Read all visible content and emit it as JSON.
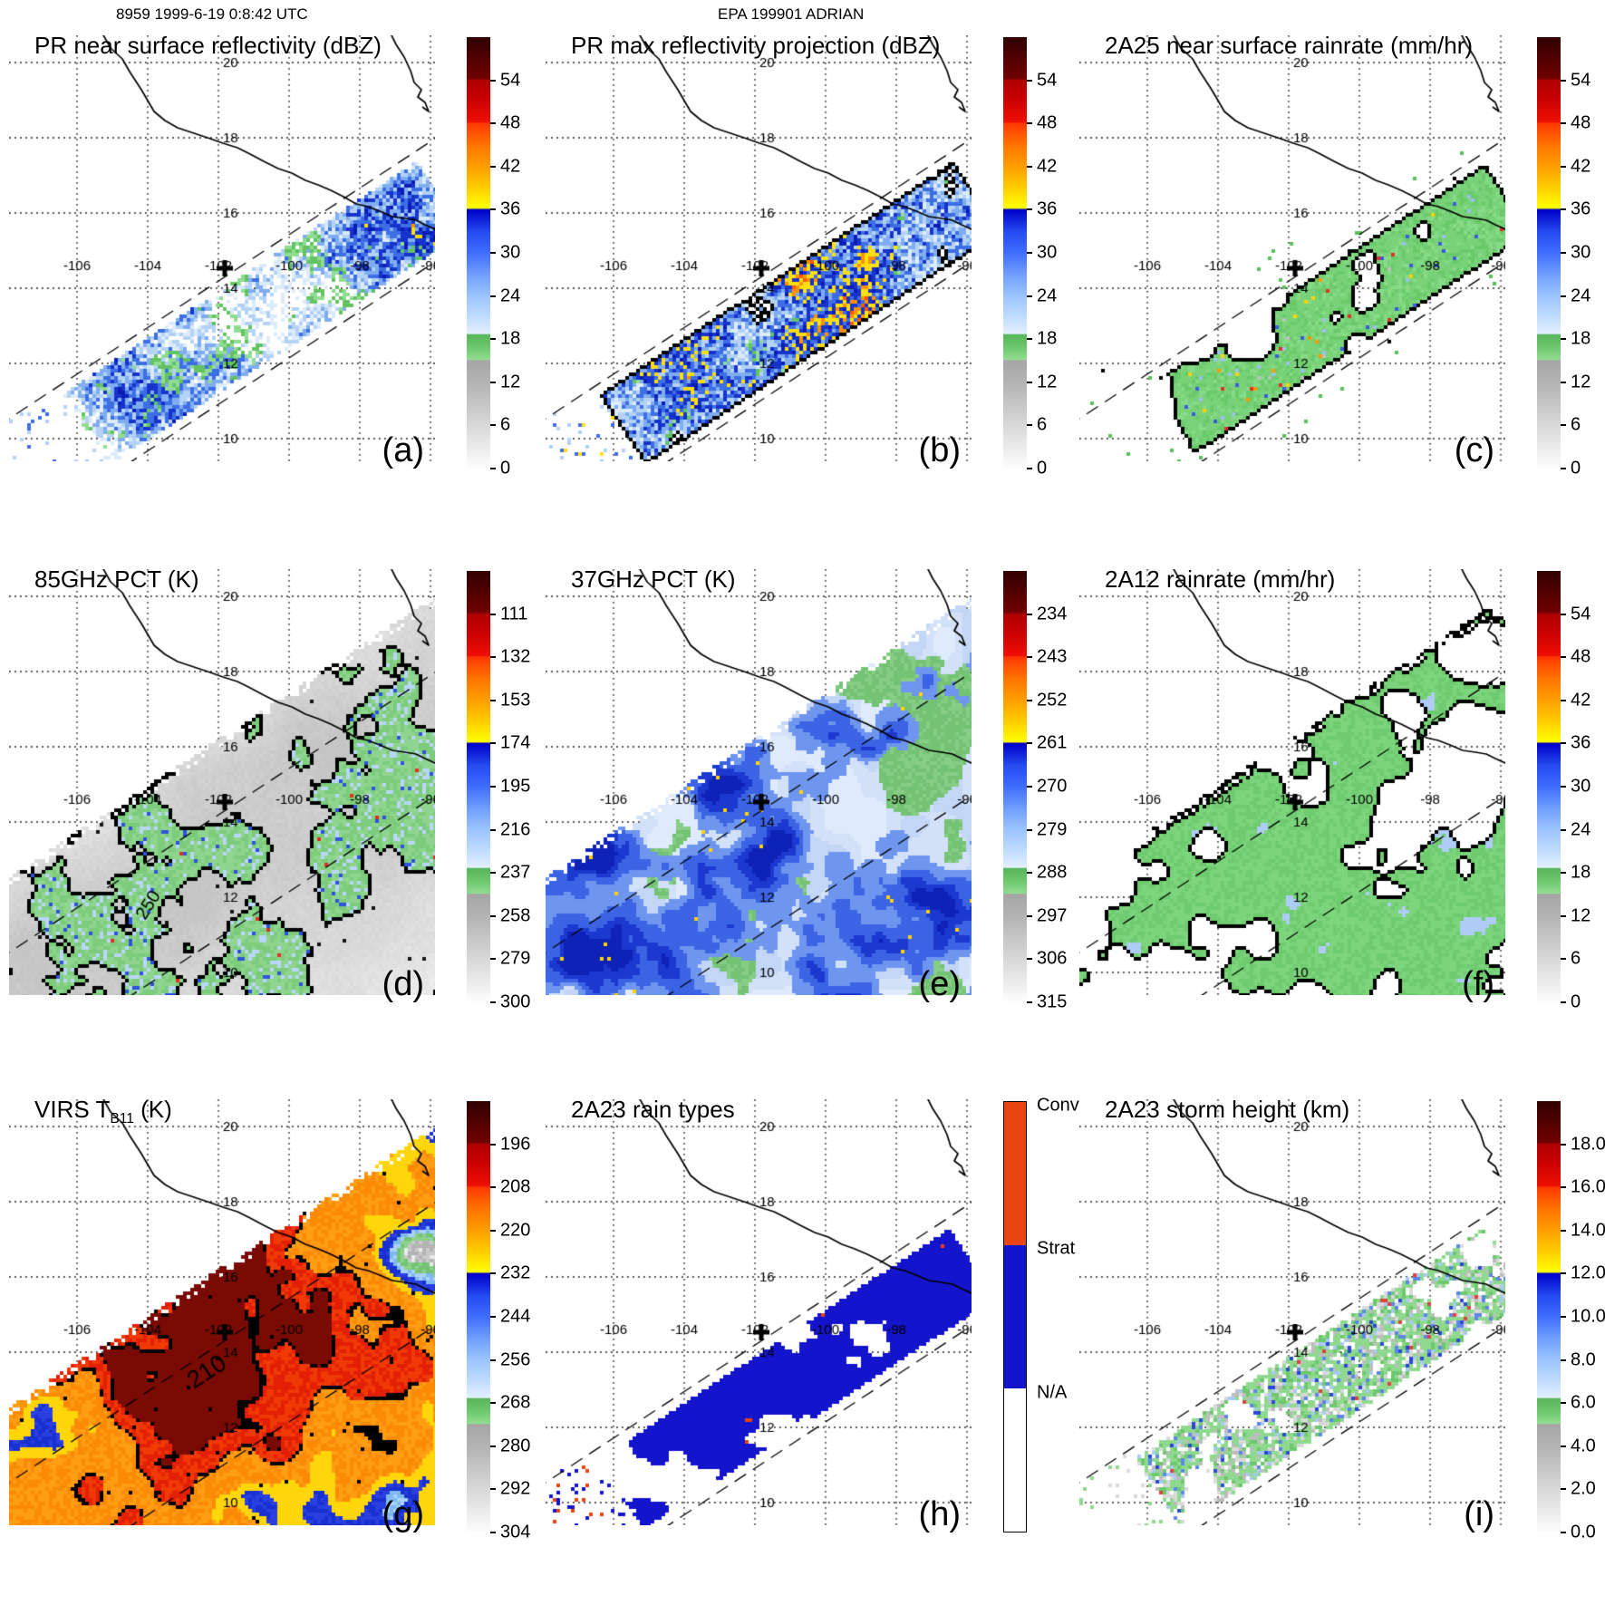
{
  "header": {
    "left": "8959 1999-6-19 0:8:42 UTC",
    "center": "EPA 199901 ADRIAN"
  },
  "map": {
    "lon_labels": [
      "-106",
      "-104",
      "-102",
      "-100",
      "-98",
      "-96"
    ],
    "lat_labels": [
      "20",
      "18",
      "16",
      "14",
      "12",
      "10"
    ],
    "storm_marker_symbol": "+",
    "storm_marker_lon": -102,
    "storm_marker_lat": 14.5
  },
  "colorbar_gradient_stops": [
    [
      0,
      "#300000"
    ],
    [
      4,
      "#4c0000"
    ],
    [
      9.6,
      "#720000"
    ],
    [
      10,
      "#ad0000"
    ],
    [
      14,
      "#c80000"
    ],
    [
      19.6,
      "#ee0f00"
    ],
    [
      20,
      "#ff3800"
    ],
    [
      25,
      "#ff7400"
    ],
    [
      29.6,
      "#ff9b00"
    ],
    [
      34,
      "#ffc400"
    ],
    [
      39.6,
      "#ffff00"
    ],
    [
      40,
      "#0000c8"
    ],
    [
      45,
      "#2349f0"
    ],
    [
      50,
      "#3f6dff"
    ],
    [
      55,
      "#6f9eff"
    ],
    [
      60,
      "#9cc4ff"
    ],
    [
      65,
      "#c2dcff"
    ],
    [
      68.7,
      "#e3efff"
    ],
    [
      69,
      "#58b658"
    ],
    [
      72,
      "#6ec86e"
    ],
    [
      74.7,
      "#92dc92"
    ],
    [
      75,
      "#a5a5a5"
    ],
    [
      80,
      "#b3b3b3"
    ],
    [
      90,
      "#d8d8d8"
    ],
    [
      100,
      "#fdfdfd"
    ]
  ],
  "panels": [
    {
      "id": "a",
      "letter": "(a)",
      "title_pre": "PR near surface reflectivity (dBZ)",
      "title_sub": "",
      "title_post": "",
      "style": "pr_z",
      "swath": "narrow",
      "contour_label": "",
      "cbar": {
        "type": "gradient",
        "ticks": [
          "54",
          "48",
          "42",
          "36",
          "30",
          "24",
          "18",
          "12",
          "6",
          "0"
        ]
      },
      "palette": {
        "pale": "#dcebfb",
        "light": "#b3d2f6",
        "mid": "#7fadf0",
        "blue": "#3e6ee4",
        "deep": "#1634cc",
        "navy": "#0a1db6",
        "green1": "#63c363",
        "green2": "#90dc90",
        "yellow": "#ffdf12",
        "orange": "#ff9100",
        "red": "#ff5a00"
      }
    },
    {
      "id": "b",
      "letter": "(b)",
      "title_pre": "PR max reflectivity projection (dBZ)",
      "title_sub": "",
      "title_post": "",
      "style": "pr_zmax",
      "swath": "narrow",
      "contour_label": "",
      "cbar": {
        "type": "gradient",
        "ticks": [
          "54",
          "48",
          "42",
          "36",
          "30",
          "24",
          "18",
          "12",
          "6",
          "0"
        ]
      },
      "palette": {
        "pale": "#dcebfb",
        "light": "#b3d2f6",
        "mid": "#7fadf0",
        "blue": "#3e6ee4",
        "deep": "#1634cc",
        "navy": "#0a1db6",
        "green1": "#63c363",
        "green2": "#90dc90",
        "yellow": "#ffdf12",
        "orange": "#ff9100",
        "red": "#ff5a00"
      }
    },
    {
      "id": "c",
      "letter": "(c)",
      "title_pre": "2A25 near surface rainrate (mm/hr)",
      "title_sub": "",
      "title_post": "",
      "style": "rr_band",
      "swath": "narrow",
      "contour_label": "",
      "cbar": {
        "type": "gradient",
        "ticks": [
          "54",
          "48",
          "42",
          "36",
          "30",
          "24",
          "18",
          "12",
          "6",
          "0"
        ]
      },
      "palette": {
        "green": "#79d279",
        "green2": "#6aca6a",
        "green3": "#87da87",
        "outer": "#57c057",
        "s_blue": "#3a5ce0",
        "s_lblue": "#9cc0f0",
        "s_red": "#e33022",
        "s_orange": "#ff9900",
        "s_yellow": "#ffd400",
        "s_gray": "#c0c0c0"
      }
    },
    {
      "id": "d",
      "letter": "(d)",
      "title_pre": "85GHz PCT (K)",
      "title_sub": "",
      "title_post": "",
      "style": "pct85",
      "swath": "wide",
      "contour_label": "250",
      "cbar": {
        "type": "gradient",
        "ticks": [
          "111",
          "132",
          "153",
          "174",
          "195",
          "216",
          "237",
          "258",
          "279",
          "300"
        ]
      },
      "palette": {
        "green": "#7ccc7c",
        "green2": "#8fd48f",
        "lblue": "#b9d6f6",
        "blue": "#2f52dd",
        "red": "#e03020"
      }
    },
    {
      "id": "e",
      "letter": "(e)",
      "title_pre": "37GHz PCT (K)",
      "title_sub": "",
      "title_post": "",
      "style": "pct37",
      "swath": "wide",
      "contour_label": "",
      "cbar": {
        "type": "gradient",
        "ticks": [
          "234",
          "243",
          "252",
          "261",
          "270",
          "279",
          "288",
          "297",
          "306",
          "315"
        ]
      },
      "palette": {
        "base1": "#c3d6f5",
        "base2": "#d2e1f8",
        "base3": "#dfeafc",
        "green": "#74c274",
        "green2": "#86cd86",
        "b1": "#6f96ee",
        "b2": "#3c63e4",
        "b3": "#1b38cf",
        "b4": "#0f22b8",
        "yellow": "#ffd400"
      }
    },
    {
      "id": "f",
      "letter": "(f)",
      "title_pre": "2A12 rainrate (mm/hr)",
      "title_sub": "",
      "title_post": "",
      "style": "rr_wide",
      "swath": "wide",
      "contour_label": "",
      "cbar": {
        "type": "gradient",
        "ticks": [
          "54",
          "48",
          "42",
          "36",
          "30",
          "24",
          "18",
          "12",
          "6",
          "0"
        ]
      },
      "palette": {
        "green": "#7cd47c",
        "greenD": "#6fcb6f",
        "lblue": "#aeccf6",
        "blue": "#3a5ce0"
      }
    },
    {
      "id": "g",
      "letter": "(g)",
      "title_pre": "VIRS T",
      "title_sub": "B11",
      "title_post": " (K)",
      "style": "virs",
      "swath": "wide",
      "contour_label": "210",
      "cbar": {
        "type": "gradient",
        "ticks": [
          "196",
          "208",
          "220",
          "232",
          "244",
          "256",
          "268",
          "280",
          "292",
          "304"
        ]
      },
      "palette": {
        "dred": "#7a0b04",
        "red": "#e32005",
        "red2": "#ef3a05",
        "orange": "#fb8a06",
        "orange2": "#ff9d13",
        "yellow": "#ffd60a",
        "blue": "#2a3fe0",
        "blue2": "#1830d0",
        "lblue": "#7fb9f0",
        "lblue2": "#a9d2f6",
        "green": "#74c274",
        "green2": "#8cd08c",
        "gray": "#b4b4b4",
        "gray2": "#c9c9c9"
      }
    },
    {
      "id": "h",
      "letter": "(h)",
      "title_pre": "2A23 rain types",
      "title_sub": "",
      "title_post": "",
      "style": "raintype",
      "swath": "narrow",
      "contour_label": "",
      "cbar": {
        "type": "categorical",
        "labels": [
          "Conv",
          "Strat",
          "N/A"
        ],
        "colors": [
          "#e8440f",
          "#1414cc",
          "#ffffff"
        ]
      },
      "palette": {
        "strat": "#1414cc",
        "conv": "#e8440f"
      }
    },
    {
      "id": "i",
      "letter": "(i)",
      "title_pre": "2A23 storm height (km)",
      "title_sub": "",
      "title_post": "",
      "style": "height",
      "swath": "narrow",
      "contour_label": "",
      "cbar": {
        "type": "gradient",
        "ticks": [
          "18.0",
          "16.0",
          "14.0",
          "12.0",
          "10.0",
          "8.0",
          "6.0",
          "4.0",
          "2.0",
          "0.0"
        ]
      },
      "palette": {
        "g1": "#8fd98f",
        "g2": "#6cc86c",
        "gray1": "#d9d9d9",
        "gray2": "#bdbdbd",
        "lb": "#a9c9f4",
        "b": "#5d86ea",
        "db": "#2a47d8",
        "red": "#e04040"
      }
    }
  ],
  "chart_data": [
    {
      "panel": "a",
      "type": "heatmap",
      "title": "PR near surface reflectivity (dBZ)",
      "units": "dBZ",
      "x_ticks": [
        -106,
        -104,
        -102,
        -100,
        -98,
        -96
      ],
      "y_ticks": [
        20,
        18,
        16,
        14,
        12,
        10
      ],
      "colorbar_ticks": [
        54,
        48,
        42,
        36,
        30,
        24,
        18,
        12,
        6,
        0
      ],
      "legend_position": "right",
      "grid": true,
      "swath": "narrow PR swath running SW-NE",
      "features": "speckled 18-35 dBZ echoes with embedded 36-48 dBZ convective cells"
    },
    {
      "panel": "b",
      "type": "heatmap",
      "title": "PR max reflectivity projection (dBZ)",
      "units": "dBZ",
      "x_ticks": [
        -106,
        -104,
        -102,
        -100,
        -98,
        -96
      ],
      "y_ticks": [
        20,
        18,
        16,
        14,
        12,
        10
      ],
      "colorbar_ticks": [
        54,
        48,
        42,
        36,
        30,
        24,
        18,
        12,
        6,
        0
      ],
      "legend_position": "right",
      "grid": true,
      "swath": "narrow PR swath running SW-NE",
      "features": "dense 24-36 dBZ field, many 36-48 dBZ cells, black echo-boundary contours"
    },
    {
      "panel": "c",
      "type": "heatmap",
      "title": "2A25 near surface rainrate (mm/hr)",
      "units": "mm/hr",
      "x_ticks": [
        -106,
        -104,
        -102,
        -100,
        -98,
        -96
      ],
      "y_ticks": [
        20,
        18,
        16,
        14,
        12,
        10
      ],
      "colorbar_ticks": [
        54,
        48,
        42,
        36,
        30,
        24,
        18,
        12,
        6,
        0
      ],
      "legend_position": "right",
      "grid": true,
      "swath": "narrow PR swath running SW-NE",
      "features": "mostly light rain (green, <6 mm/hr) outlined in black with scattered heavier blue/red pixels"
    },
    {
      "panel": "d",
      "type": "heatmap",
      "title": "85GHz PCT (K)",
      "units": "K",
      "x_ticks": [
        -106,
        -104,
        -102,
        -100,
        -98,
        -96
      ],
      "y_ticks": [
        20,
        18,
        16,
        14,
        12,
        10
      ],
      "colorbar_ticks": [
        111,
        132,
        153,
        174,
        195,
        216,
        237,
        258,
        279,
        300
      ],
      "legend_position": "right",
      "grid": true,
      "contour_label": "250",
      "swath": "wide TMI swath",
      "features": "warm gray background (260-300 K) with black-outlined green cold patches (~230-250 K) containing blue/red minima"
    },
    {
      "panel": "e",
      "type": "heatmap",
      "title": "37GHz PCT (K)",
      "units": "K",
      "x_ticks": [
        -106,
        -104,
        -102,
        -100,
        -98,
        -96
      ],
      "y_ticks": [
        20,
        18,
        16,
        14,
        12,
        10
      ],
      "colorbar_ticks": [
        234,
        243,
        252,
        261,
        270,
        279,
        288,
        297,
        306,
        315
      ],
      "legend_position": "right",
      "grid": true,
      "swath": "wide TMI swath",
      "features": "pale-blue ocean (~280 K), green land/warm areas (~288 K), large deep-blue 264-273 K rain areas, few yellow ~261 K pixels"
    },
    {
      "panel": "f",
      "type": "heatmap",
      "title": "2A12 rainrate (mm/hr)",
      "units": "mm/hr",
      "x_ticks": [
        -106,
        -104,
        -102,
        -100,
        -98,
        -96
      ],
      "y_ticks": [
        20,
        18,
        16,
        14,
        12,
        10
      ],
      "colorbar_ticks": [
        54,
        48,
        42,
        36,
        30,
        24,
        18,
        12,
        6,
        0
      ],
      "legend_position": "right",
      "grid": true,
      "swath": "wide TMI swath",
      "features": "very large black-outlined light-green (<6 mm/hr) rain shield with light-blue 6-12 mm/hr patches"
    },
    {
      "panel": "g",
      "type": "heatmap",
      "title": "VIRS T_B11 (K)",
      "units": "K",
      "x_ticks": [
        -106,
        -104,
        -102,
        -100,
        -98,
        -96
      ],
      "y_ticks": [
        20,
        18,
        16,
        14,
        12,
        10
      ],
      "colorbar_ticks": [
        196,
        208,
        220,
        232,
        244,
        256,
        268,
        280,
        292,
        304
      ],
      "legend_position": "right",
      "grid": true,
      "contour_label": "210",
      "swath": "wide VIRS swath",
      "features": "huge cold cloud shield: orange/red 200-220 K with dark-red <208 K cores and 210 K black contour, yellow fringe, blue/light-blue 244-260 K band, green/gray warm edges"
    },
    {
      "panel": "h",
      "type": "heatmap",
      "title": "2A23 rain types",
      "units": "category",
      "x_ticks": [
        -106,
        -104,
        -102,
        -100,
        -98,
        -96
      ],
      "y_ticks": [
        20,
        18,
        16,
        14,
        12,
        10
      ],
      "categories": [
        "Conv",
        "Strat",
        "N/A"
      ],
      "category_colors": [
        "#e8440f",
        "#1414cc",
        "#ffffff"
      ],
      "legend_position": "right",
      "grid": true,
      "swath": "narrow PR swath",
      "features": "mostly stratiform (blue) band with scattered convective (orange-red) pixels, white N/A gaps"
    },
    {
      "panel": "i",
      "type": "heatmap",
      "title": "2A23 storm height (km)",
      "units": "km",
      "x_ticks": [
        -106,
        -104,
        -102,
        -100,
        -98,
        -96
      ],
      "y_ticks": [
        20,
        18,
        16,
        14,
        12,
        10
      ],
      "colorbar_ticks": [
        18.0,
        16.0,
        14.0,
        12.0,
        10.0,
        8.0,
        6.0,
        4.0,
        2.0,
        0.0
      ],
      "legend_position": "right",
      "grid": true,
      "swath": "narrow PR swath",
      "features": "speckled 4-8 km storm heights (green/gray) with scattered 8-11 km blue pixels"
    }
  ]
}
